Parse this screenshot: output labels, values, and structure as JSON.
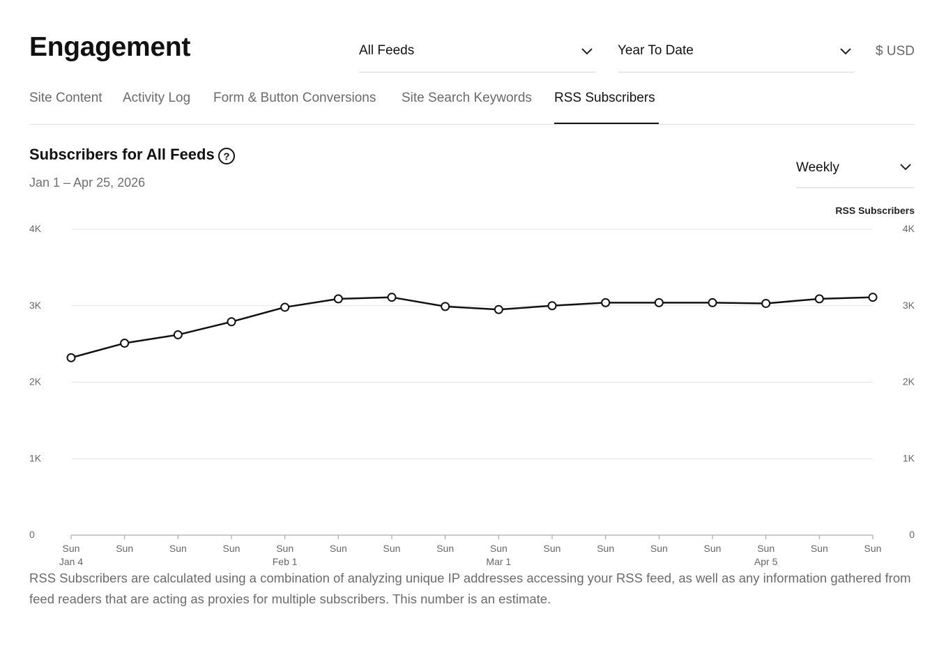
{
  "header": {
    "title": "Engagement",
    "feed_select": "All Feeds",
    "range_select": "Year To Date",
    "currency": "$ USD"
  },
  "tabs": [
    {
      "label": "Site Content",
      "active": false
    },
    {
      "label": "Activity Log",
      "active": false
    },
    {
      "label": "Form & Button Conversions",
      "active": false
    },
    {
      "label": "Site Search Keywords",
      "active": false
    },
    {
      "label": "RSS Subscribers",
      "active": true
    }
  ],
  "chart_header": {
    "title": "Subscribers for All Feeds",
    "subtitle": "Jan 1 – Apr 25, 2026",
    "interval_select": "Weekly"
  },
  "chart_data": {
    "type": "line",
    "title": "Subscribers for All Feeds",
    "legend": [
      "RSS Subscribers"
    ],
    "legend_position": "top-right",
    "x_tick_labels": [
      "Sun",
      "Sun",
      "Sun",
      "Sun",
      "Sun",
      "Sun",
      "Sun",
      "Sun",
      "Sun",
      "Sun",
      "Sun",
      "Sun",
      "Sun",
      "Sun",
      "Sun",
      "Sun"
    ],
    "x_sub_labels": [
      "Jan 4",
      "",
      "",
      "",
      "Feb 1",
      "",
      "",
      "",
      "Mar 1",
      "",
      "",
      "",
      "",
      "Apr 5",
      "",
      ""
    ],
    "series": [
      {
        "name": "RSS Subscribers",
        "values": [
          2320,
          2510,
          2620,
          2790,
          2980,
          3090,
          3110,
          2990,
          2950,
          3000,
          3040,
          3040,
          3040,
          3030,
          3090,
          3110
        ]
      }
    ],
    "ylim": [
      0,
      4000
    ],
    "y_ticks": [
      0,
      1000,
      2000,
      3000,
      4000
    ],
    "y_tick_labels": [
      "0",
      "1K",
      "2K",
      "3K",
      "4K"
    ],
    "grid": true,
    "xlabel": "",
    "ylabel": ""
  },
  "footnote": "RSS Subscribers are calculated using a combination of analyzing unique IP addresses accessing your RSS feed, as well as any information gathered from feed readers that are acting as proxies for multiple subscribers. This number is an estimate."
}
